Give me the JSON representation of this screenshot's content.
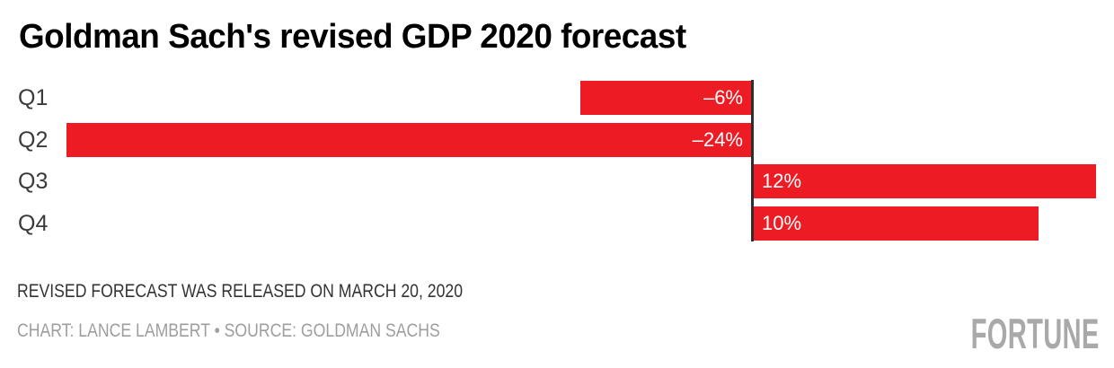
{
  "title": "Goldman Sach's revised GDP 2020 forecast",
  "chart_data": {
    "type": "bar",
    "orientation": "horizontal",
    "title": "Goldman Sach's revised GDP 2020 forecast",
    "categories": [
      "Q1",
      "Q2",
      "Q3",
      "Q4"
    ],
    "values": [
      -6,
      -24,
      12,
      10
    ],
    "value_labels": [
      "–6%",
      "–24%",
      "12%",
      "10%"
    ],
    "unit": "%",
    "xlim": [
      -24,
      12
    ],
    "grid": false,
    "legend": false,
    "bar_color": "#ed1c24",
    "value_label_color": "#ffffff",
    "category_label_color": "#3a3a3a",
    "zero_axis_color": "#2e2e2e"
  },
  "footer": {
    "note": "REVISED FORECAST WAS RELEASED ON MARCH 20, 2020",
    "credit": "CHART: LANCE LAMBERT • SOURCE: GOLDMAN SACHS"
  },
  "branding": {
    "logo_text": "FORTUNE",
    "logo_color": "#a9a9a9"
  }
}
